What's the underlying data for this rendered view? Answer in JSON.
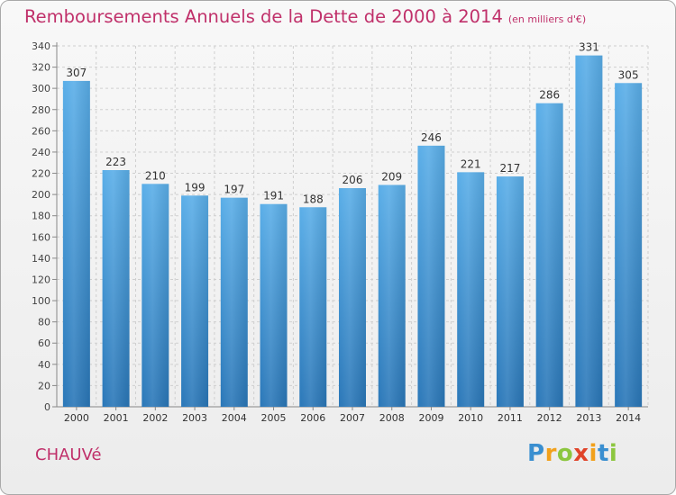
{
  "header": {
    "title": "Remboursements Annuels de la Dette de 2000 à 2014",
    "unit": "(en milliers d'€)"
  },
  "footer": {
    "commune": "CHAUVé",
    "logo_text": "Proxiti"
  },
  "colors": {
    "title": "#c0306a",
    "bar_top": "#5aaee8",
    "bar_bottom": "#2a77b8",
    "grid": "#cfcfcf"
  },
  "chart_data": {
    "type": "bar",
    "title": "Remboursements Annuels de la Dette de 2000 à 2014",
    "subtitle": "(en milliers d'€)",
    "xlabel": "",
    "ylabel": "",
    "categories": [
      "2000",
      "2001",
      "2002",
      "2003",
      "2004",
      "2005",
      "2006",
      "2007",
      "2008",
      "2009",
      "2010",
      "2011",
      "2012",
      "2013",
      "2014"
    ],
    "values": [
      307,
      223,
      210,
      199,
      197,
      191,
      188,
      206,
      209,
      246,
      221,
      217,
      286,
      331,
      305
    ],
    "ylim": [
      0,
      340
    ],
    "yticks": [
      0,
      20,
      40,
      60,
      80,
      100,
      120,
      140,
      160,
      180,
      200,
      220,
      240,
      260,
      280,
      300,
      320,
      340
    ],
    "grid": true,
    "legend": "none"
  }
}
